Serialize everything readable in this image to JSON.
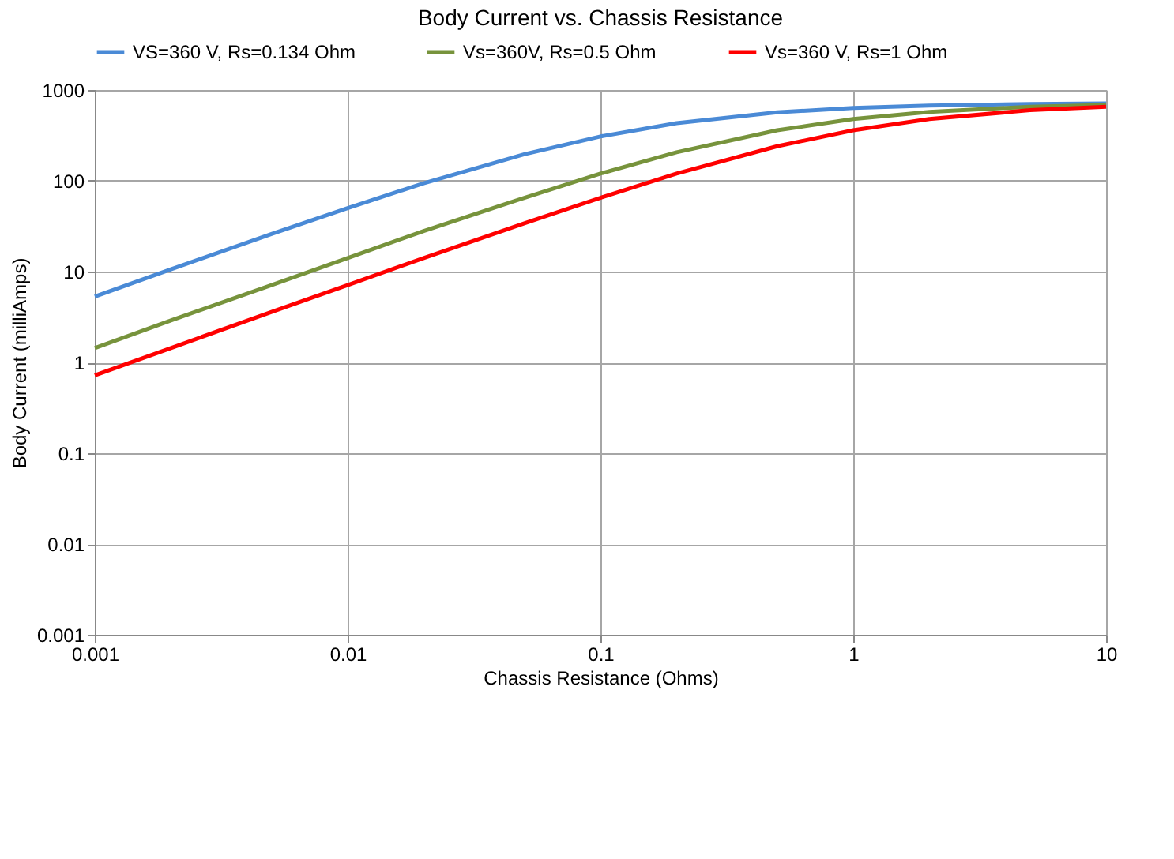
{
  "chart_data": {
    "type": "line",
    "title": "Body Current vs. Chassis Resistance",
    "xlabel": "Chassis Resistance (Ohms)",
    "ylabel": "Body Current (milliAmps)",
    "x": [
      0.001,
      0.002,
      0.005,
      0.01,
      0.02,
      0.05,
      0.1,
      0.2,
      0.5,
      1,
      2,
      5,
      10
    ],
    "series": [
      {
        "name": "VS=360 V, Rs=0.134 Ohm",
        "color": "#4a8ad6",
        "values": [
          5.3,
          10.6,
          26,
          50,
          94,
          196,
          308,
          431,
          568,
          635,
          675,
          701,
          710
        ]
      },
      {
        "name": "Vs=360V, Rs=0.5 Ohm",
        "color": "#77933c",
        "values": [
          1.44,
          2.9,
          7.1,
          14.1,
          28,
          65,
          120,
          206,
          360,
          480,
          575,
          654,
          685
        ]
      },
      {
        "name": "Vs=360 V, Rs=1 Ohm",
        "color": "#ff0000",
        "values": [
          0.72,
          1.44,
          3.6,
          7.1,
          14.1,
          34,
          65,
          120,
          240,
          360,
          479,
          599,
          653
        ]
      }
    ],
    "log": "xy",
    "xlim": [
      0.001,
      10
    ],
    "ylim": [
      0.001,
      1000
    ],
    "xticks": [
      0.001,
      0.01,
      0.1,
      1,
      10
    ],
    "yticks": [
      0.001,
      0.01,
      0.1,
      1,
      10,
      100,
      1000
    ],
    "grid": true,
    "legend": "top",
    "marker": "none",
    "line_style": "solid"
  }
}
